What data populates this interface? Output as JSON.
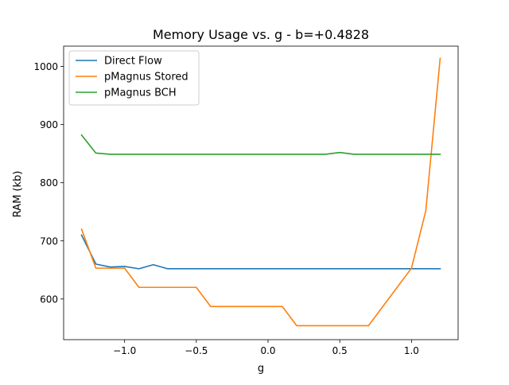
{
  "chart_data": {
    "type": "line",
    "title": "Memory Usage vs. g - b=+0.4828",
    "xlabel": "g",
    "ylabel": "RAM (kb)",
    "xlim": [
      -1.425,
      1.325
    ],
    "ylim": [
      530,
      1035
    ],
    "xticks": [
      {
        "value": -1.0,
        "label": "−1.0"
      },
      {
        "value": -0.5,
        "label": "−0.5"
      },
      {
        "value": 0.0,
        "label": "0.0"
      },
      {
        "value": 0.5,
        "label": "0.5"
      },
      {
        "value": 1.0,
        "label": "1.0"
      }
    ],
    "yticks": [
      {
        "value": 600,
        "label": "600"
      },
      {
        "value": 700,
        "label": "700"
      },
      {
        "value": 800,
        "label": "800"
      },
      {
        "value": 900,
        "label": "900"
      },
      {
        "value": 1000,
        "label": "1000"
      }
    ],
    "grid": false,
    "legend_position": "top-left",
    "x": [
      -1.3,
      -1.2,
      -1.1,
      -1.0,
      -0.9,
      -0.8,
      -0.7,
      -0.6,
      -0.5,
      -0.4,
      -0.3,
      -0.2,
      -0.1,
      0.0,
      0.1,
      0.2,
      0.3,
      0.4,
      0.5,
      0.6,
      0.7,
      0.8,
      0.9,
      1.0,
      1.1,
      1.2
    ],
    "series": [
      {
        "name": "Direct Flow",
        "color": "#1f77b4",
        "values": [
          710,
          660,
          655,
          656,
          652,
          659,
          652,
          652,
          652,
          652,
          652,
          652,
          652,
          652,
          652,
          652,
          652,
          652,
          652,
          652,
          652,
          652,
          652,
          652,
          652,
          652
        ]
      },
      {
        "name": "pMagnus Stored",
        "color": "#ff7f0e",
        "values": [
          720,
          653,
          653,
          653,
          620,
          620,
          620,
          620,
          620,
          587,
          587,
          587,
          587,
          587,
          587,
          554,
          554,
          554,
          554,
          554,
          554,
          587,
          620,
          653,
          752,
          1014
        ]
      },
      {
        "name": "pMagnus BCH",
        "color": "#2ca02c",
        "values": [
          882,
          851,
          849,
          849,
          849,
          849,
          849,
          849,
          849,
          849,
          849,
          849,
          849,
          849,
          849,
          849,
          849,
          849,
          852,
          849,
          849,
          849,
          849,
          849,
          849,
          849
        ]
      }
    ]
  }
}
